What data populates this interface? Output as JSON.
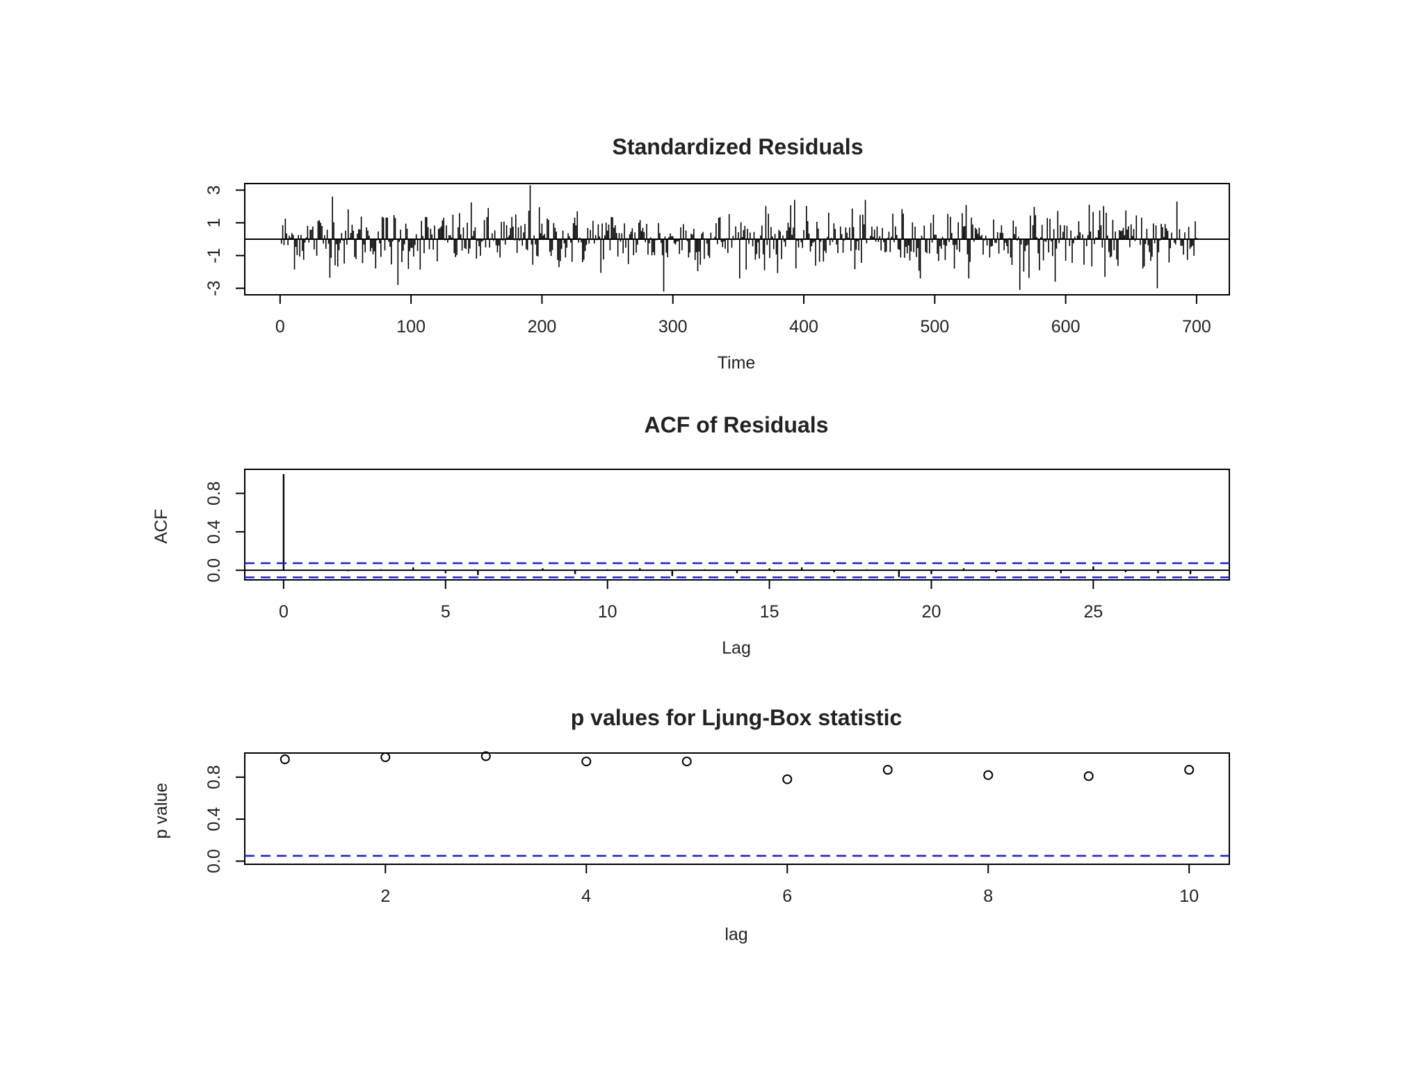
{
  "chart_data": [
    {
      "type": "bar",
      "title": "Standardized Residuals",
      "xlabel": "Time",
      "ylabel": "",
      "xlim": [
        -27,
        725
      ],
      "ylim": [
        -3.4,
        3.4
      ],
      "x_ticks": [
        0,
        100,
        200,
        300,
        400,
        500,
        600,
        700
      ],
      "y_ticks": [
        -3,
        -1,
        1,
        3
      ],
      "series": [
        {
          "x_start": 1,
          "x_end": 700,
          "n": 700,
          "description_values": "approximately white noise standardized residuals",
          "notable_points": [
            {
              "x": 40,
              "y": 2.6
            },
            {
              "x": 90,
              "y": -2.8
            },
            {
              "x": 191,
              "y": 3.3
            },
            {
              "x": 293,
              "y": -3.2
            },
            {
              "x": 565,
              "y": -3.1
            },
            {
              "x": 592,
              "y": -2.6
            },
            {
              "x": 670,
              "y": -3.0
            },
            {
              "x": 685,
              "y": 2.3
            }
          ]
        }
      ],
      "grid": false
    },
    {
      "type": "bar",
      "title": "ACF of Residuals",
      "xlabel": "Lag",
      "ylabel": "ACF",
      "xlim": [
        -1.2,
        29.2
      ],
      "ylim": [
        -0.1,
        1.05
      ],
      "x_ticks": [
        0,
        5,
        10,
        15,
        20,
        25
      ],
      "y_ticks": [
        0.0,
        0.4,
        0.8
      ],
      "y_tick_labels": [
        "0.0",
        "0.4",
        "0.8"
      ],
      "lags": [
        0,
        1,
        2,
        3,
        4,
        5,
        6,
        7,
        8,
        9,
        10,
        11,
        12,
        13,
        14,
        15,
        16,
        17,
        18,
        19,
        20,
        21,
        22,
        23,
        24,
        25,
        26,
        27,
        28
      ],
      "values": [
        1.0,
        0.005,
        -0.01,
        0.01,
        0.03,
        -0.03,
        -0.05,
        0.01,
        0.02,
        -0.04,
        0.01,
        0.02,
        -0.06,
        0.01,
        -0.03,
        0.02,
        0.03,
        -0.02,
        0.01,
        -0.07,
        -0.04,
        0.02,
        -0.02,
        0.01,
        -0.03,
        0.04,
        -0.02,
        -0.03,
        -0.04
      ],
      "confidence_bound": 0.074,
      "grid": false
    },
    {
      "type": "scatter",
      "title": "p values for Ljung-Box statistic",
      "xlabel": "lag",
      "ylabel": "p value",
      "xlim": [
        0.6,
        10.4
      ],
      "ylim": [
        -0.03,
        1.03
      ],
      "x_ticks": [
        2,
        4,
        6,
        8,
        10
      ],
      "y_ticks": [
        0.0,
        0.4,
        0.8
      ],
      "y_tick_labels": [
        "0.0",
        "0.4",
        "0.8"
      ],
      "x": [
        1,
        2,
        3,
        4,
        5,
        6,
        7,
        8,
        9,
        10
      ],
      "y": [
        0.97,
        0.99,
        1.0,
        0.95,
        0.95,
        0.78,
        0.87,
        0.82,
        0.81,
        0.87
      ],
      "reference_line": 0.05,
      "grid": false
    }
  ],
  "colors": {
    "line": "#000000",
    "dashed": "#1a1ad6",
    "text": "#222222"
  }
}
